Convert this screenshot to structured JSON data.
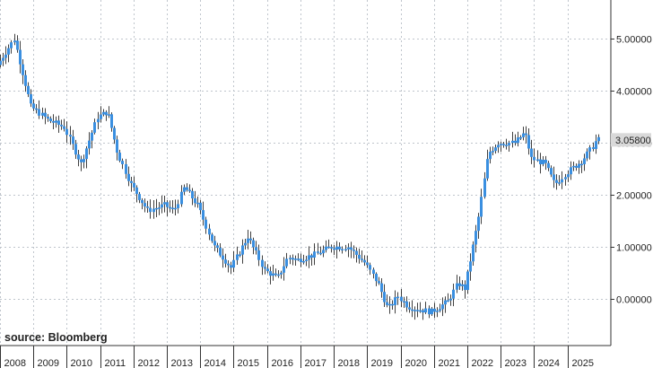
{
  "chart_data": {
    "type": "candlestick",
    "source": "source: Bloomberg",
    "y_ticks": [
      "5.00000",
      "4.00000",
      "3.00000",
      "2.00000",
      "1.00000",
      "0.00000"
    ],
    "y_tick_values": [
      5,
      4,
      3,
      2,
      1,
      0
    ],
    "x_ticks": [
      "2008",
      "2009",
      "2010",
      "2011",
      "2012",
      "2013",
      "2014",
      "2015",
      "2016",
      "2017",
      "2018",
      "2019",
      "2020",
      "2021",
      "2022",
      "2023",
      "2024",
      "2025"
    ],
    "ylim": [
      -0.9,
      5.75
    ],
    "xlim": [
      2008.0,
      2026.3
    ],
    "last_value": "3.05800",
    "last_value_num": 3.058,
    "grid": true,
    "colors": {
      "up": "#3a8fe0",
      "down": "#3a8fe0",
      "wick": "#111111",
      "grid": "#bfc5cc",
      "label_box": "#d9d9d9"
    },
    "x": [
      2008.0,
      2008.5,
      2009.0,
      2009.5,
      2010.0,
      2010.5,
      2011.0,
      2011.3,
      2011.6,
      2012.0,
      2012.5,
      2013.0,
      2013.3,
      2013.6,
      2014.0,
      2014.5,
      2015.0,
      2015.5,
      2016.0,
      2016.4,
      2016.7,
      2017.0,
      2017.5,
      2018.0,
      2018.5,
      2019.0,
      2019.4,
      2019.7,
      2020.0,
      2020.3,
      2020.6,
      2021.0,
      2021.5,
      2021.8,
      2022.0,
      2022.4,
      2022.7,
      2023.0,
      2023.5,
      2023.8,
      2024.0,
      2024.4,
      2024.7,
      2025.0,
      2025.5,
      2025.8,
      2025.95
    ],
    "values": [
      4.5,
      5.0,
      3.7,
      3.45,
      3.3,
      2.6,
      3.5,
      3.6,
      2.8,
      2.2,
      1.7,
      1.8,
      1.7,
      2.15,
      1.8,
      1.0,
      0.6,
      1.2,
      0.55,
      0.4,
      0.8,
      0.75,
      0.85,
      1.0,
      1.0,
      0.7,
      0.3,
      -0.2,
      0.05,
      -0.15,
      -0.2,
      -0.25,
      -0.05,
      0.3,
      0.2,
      1.5,
      2.8,
      3.0,
      3.0,
      3.2,
      2.7,
      2.6,
      2.2,
      2.4,
      2.65,
      2.9,
      3.06
    ]
  }
}
